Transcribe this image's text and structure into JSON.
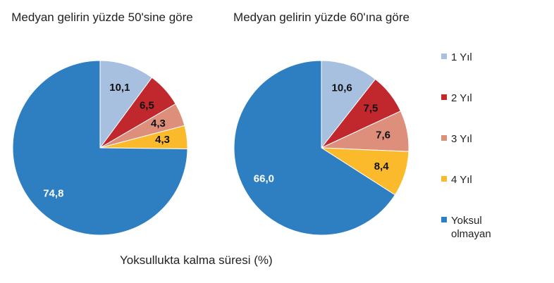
{
  "chart_data": [
    {
      "type": "pie",
      "title": "Medyan gelirin yüzde 50'sine göre",
      "values": [
        10.1,
        6.5,
        4.3,
        4.3,
        74.8
      ],
      "value_labels": [
        "10,1",
        "6,5",
        "4,3",
        "4,3",
        "74,8"
      ]
    },
    {
      "type": "pie",
      "title": "Medyan gelirin yüzde 60'ına göre",
      "values": [
        10.6,
        7.5,
        7.6,
        8.4,
        66.0
      ],
      "value_labels": [
        "10,6",
        "7,5",
        "7,6",
        "8,4",
        "66,0"
      ]
    }
  ],
  "legend": {
    "position": "right",
    "items": [
      {
        "name": "1  Yıl",
        "color": "#a8c0e0"
      },
      {
        "name": "2  Yıl",
        "color": "#c0282d"
      },
      {
        "name": "3  Yıl",
        "color": "#de8f7b"
      },
      {
        "name": "4  Yıl",
        "color": "#fbba2b"
      },
      {
        "name": "Yoksul olmayan",
        "color": "#2e7ec2"
      }
    ]
  },
  "caption": "Yoksullukta kalma süresi (%)"
}
